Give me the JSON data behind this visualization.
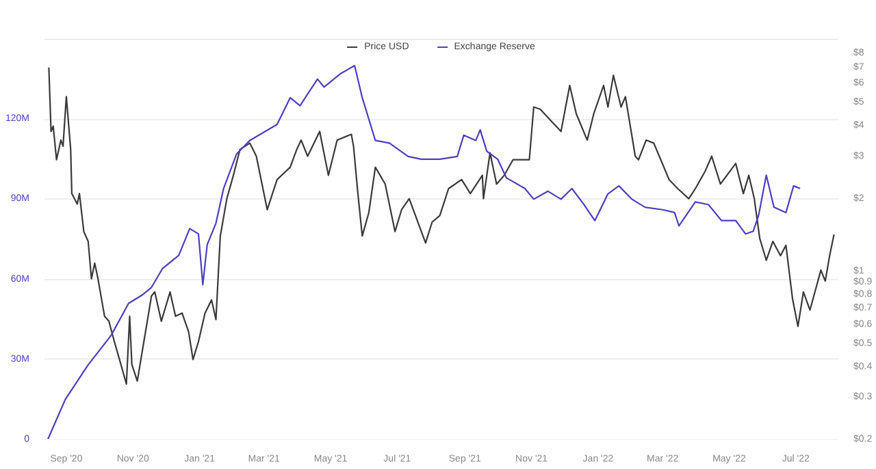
{
  "chart_data": {
    "type": "line",
    "legend": "top",
    "grid": "y",
    "log": "y2",
    "xlim": [
      "2020-08-12",
      "2022-08-09"
    ],
    "xticks": [
      {
        "value": "2020-09-01",
        "label": "Sep '20"
      },
      {
        "value": "2020-11-01",
        "label": "Nov '20"
      },
      {
        "value": "2021-01-01",
        "label": "Jan '21"
      },
      {
        "value": "2021-03-01",
        "label": "Mar '21"
      },
      {
        "value": "2021-05-01",
        "label": "May '21"
      },
      {
        "value": "2021-07-01",
        "label": "Jul '21"
      },
      {
        "value": "2021-09-01",
        "label": "Sep '21"
      },
      {
        "value": "2021-11-01",
        "label": "Nov '21"
      },
      {
        "value": "2022-01-01",
        "label": "Jan '22"
      },
      {
        "value": "2022-03-01",
        "label": "Mar '22"
      },
      {
        "value": "2022-05-01",
        "label": "May '22"
      },
      {
        "value": "2022-07-01",
        "label": "Jul '22"
      }
    ],
    "ylim": [
      0,
      150
    ],
    "yticks": [
      0,
      {
        "value": 30,
        "label": "30M"
      },
      {
        "value": 60,
        "label": "60M"
      },
      {
        "value": 90,
        "label": "90M"
      },
      {
        "value": 120,
        "label": "120M"
      }
    ],
    "y2lim": [
      0.2,
      9.2
    ],
    "y2ticks": [
      {
        "value": 0.2,
        "label": "$0.2"
      },
      {
        "value": 0.3,
        "label": "$0.3"
      },
      {
        "value": 0.4,
        "label": "$0.4"
      },
      {
        "value": 0.5,
        "label": "$0.5"
      },
      {
        "value": 0.6,
        "label": "$0.6"
      },
      {
        "value": 0.7,
        "label": "$0.7"
      },
      {
        "value": 0.8,
        "label": "$0.8"
      },
      {
        "value": 0.9,
        "label": "$0.9"
      },
      {
        "value": 1,
        "label": "$1"
      },
      {
        "value": 2,
        "label": "$2"
      },
      {
        "value": 3,
        "label": "$3"
      },
      {
        "value": 4,
        "label": "$4"
      },
      {
        "value": 5,
        "label": "$5"
      },
      {
        "value": 6,
        "label": "$6"
      },
      {
        "value": 7,
        "label": "$7"
      },
      {
        "value": 8,
        "label": "$8"
      }
    ],
    "series": [
      {
        "name": "Price USD",
        "color": "#3a3a3a",
        "axis": "y2",
        "x": [
          "2020-08-16",
          "2020-08-18",
          "2020-08-20",
          "2020-08-23",
          "2020-08-27",
          "2020-08-29",
          "2020-09-01",
          "2020-09-05",
          "2020-09-06",
          "2020-09-11",
          "2020-09-13",
          "2020-09-17",
          "2020-09-21",
          "2020-09-24",
          "2020-09-27",
          "2020-09-30",
          "2020-10-06",
          "2020-10-10",
          "2020-10-15",
          "2020-10-21",
          "2020-10-26",
          "2020-10-29",
          "2020-10-31",
          "2020-11-05",
          "2020-11-11",
          "2020-11-18",
          "2020-11-21",
          "2020-11-27",
          "2020-12-05",
          "2020-12-10",
          "2020-12-16",
          "2020-12-22",
          "2020-12-26",
          "2020-12-31",
          "2021-01-06",
          "2021-01-12",
          "2021-01-16",
          "2021-01-20",
          "2021-01-26",
          "2021-02-01",
          "2021-02-07",
          "2021-02-16",
          "2021-02-22",
          "2021-03-04",
          "2021-03-13",
          "2021-03-25",
          "2021-03-31",
          "2021-04-04",
          "2021-04-10",
          "2021-04-21",
          "2021-04-29",
          "2021-05-07",
          "2021-05-20",
          "2021-05-22",
          "2021-05-26",
          "2021-05-30",
          "2021-06-05",
          "2021-06-11",
          "2021-06-20",
          "2021-06-29",
          "2021-07-05",
          "2021-07-12",
          "2021-07-27",
          "2021-08-02",
          "2021-08-09",
          "2021-08-17",
          "2021-08-29",
          "2021-09-06",
          "2021-09-17",
          "2021-09-18",
          "2021-09-24",
          "2021-09-30",
          "2021-10-07",
          "2021-10-15",
          "2021-10-30",
          "2021-11-03",
          "2021-11-09",
          "2021-11-19",
          "2021-11-28",
          "2021-12-06",
          "2021-12-12",
          "2021-12-22",
          "2021-12-28",
          "2022-01-06",
          "2022-01-10",
          "2022-01-15",
          "2022-01-22",
          "2022-01-26",
          "2022-02-04",
          "2022-02-07",
          "2022-02-14",
          "2022-02-21",
          "2022-02-26",
          "2022-03-07",
          "2022-03-15",
          "2022-03-25",
          "2022-03-31",
          "2022-04-09",
          "2022-04-15",
          "2022-04-23",
          "2022-05-07",
          "2022-05-14",
          "2022-05-19",
          "2022-05-24",
          "2022-05-29",
          "2022-06-04",
          "2022-06-10",
          "2022-06-17",
          "2022-06-22",
          "2022-06-28",
          "2022-07-03",
          "2022-07-08",
          "2022-07-14",
          "2022-07-24",
          "2022-07-28",
          "2022-08-01",
          "2022-08-05"
        ],
        "values": [
          7.0,
          3.8,
          4.0,
          2.9,
          3.5,
          3.3,
          5.3,
          3.2,
          2.1,
          1.9,
          2.1,
          1.46,
          1.33,
          0.93,
          1.08,
          0.93,
          0.65,
          0.62,
          0.51,
          0.41,
          0.34,
          0.65,
          0.41,
          0.35,
          0.51,
          0.79,
          0.82,
          0.62,
          0.82,
          0.65,
          0.67,
          0.56,
          0.43,
          0.51,
          0.67,
          0.76,
          0.63,
          1.4,
          2.0,
          2.5,
          3.2,
          3.4,
          3.0,
          1.8,
          2.4,
          2.7,
          3.2,
          3.5,
          3.0,
          3.8,
          2.5,
          3.5,
          3.7,
          3.3,
          2.1,
          1.4,
          1.75,
          2.7,
          2.3,
          1.46,
          1.8,
          2.0,
          1.31,
          1.6,
          1.7,
          2.2,
          2.4,
          2.1,
          2.5,
          2.0,
          3.1,
          2.3,
          2.5,
          2.9,
          2.9,
          4.8,
          4.7,
          4.2,
          3.8,
          5.9,
          4.5,
          3.5,
          4.5,
          5.9,
          4.8,
          6.5,
          4.8,
          5.3,
          3.0,
          2.9,
          3.5,
          3.4,
          3.0,
          2.4,
          2.2,
          2.0,
          2.2,
          2.6,
          3.0,
          2.3,
          2.8,
          2.1,
          2.5,
          2.0,
          1.37,
          1.11,
          1.33,
          1.16,
          1.28,
          0.77,
          0.59,
          0.82,
          0.69,
          1.01,
          0.91,
          1.16,
          1.42
        ]
      },
      {
        "name": "Exchange Reserve",
        "color": "#4b3fbf",
        "x": [
          "2020-08-15",
          "2020-08-31",
          "2020-09-21",
          "2020-10-12",
          "2020-10-28",
          "2020-11-09",
          "2020-11-18",
          "2020-11-28",
          "2020-12-13",
          "2020-12-23",
          "2020-12-31",
          "2021-01-04",
          "2021-01-08",
          "2021-01-16",
          "2021-01-23",
          "2021-02-04",
          "2021-02-16",
          "2021-03-13",
          "2021-03-25",
          "2021-04-03",
          "2021-04-19",
          "2021-04-25",
          "2021-05-10",
          "2021-05-23",
          "2021-05-30",
          "2021-06-11",
          "2021-06-24",
          "2021-07-11",
          "2021-07-23",
          "2021-08-09",
          "2021-08-25",
          "2021-08-31",
          "2021-09-11",
          "2021-09-15",
          "2021-09-21",
          "2021-10-01",
          "2021-10-09",
          "2021-10-26",
          "2021-11-03",
          "2021-11-16",
          "2021-11-28",
          "2021-12-08",
          "2021-12-19",
          "2021-12-29",
          "2022-01-10",
          "2022-01-20",
          "2022-02-01",
          "2022-02-13",
          "2022-03-02",
          "2022-03-12",
          "2022-03-16",
          "2022-03-31",
          "2022-04-12",
          "2022-04-24",
          "2022-05-07",
          "2022-05-16",
          "2022-05-23",
          "2022-05-28",
          "2022-06-04",
          "2022-06-11",
          "2022-06-22",
          "2022-06-29",
          "2022-07-05"
        ],
        "values": [
          0,
          15,
          28,
          39,
          51,
          54,
          57,
          64,
          69,
          79,
          77,
          58,
          73,
          81,
          94,
          107,
          112,
          118,
          128,
          125,
          135,
          132,
          137,
          140,
          128,
          112,
          111,
          106,
          105,
          105,
          106,
          114,
          112,
          116,
          108,
          105,
          98,
          94,
          90,
          93,
          90,
          94,
          88,
          82,
          92,
          95,
          90,
          87,
          86,
          85,
          80,
          89,
          88,
          82,
          82,
          77,
          78,
          84,
          99,
          87,
          85,
          95,
          94
        ]
      }
    ]
  }
}
